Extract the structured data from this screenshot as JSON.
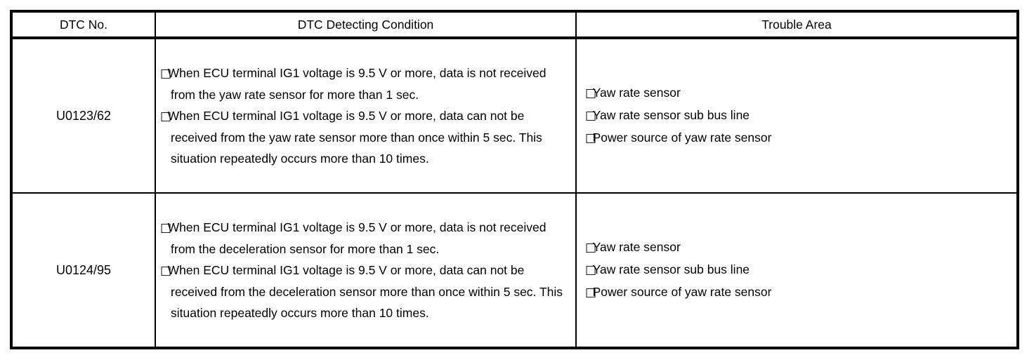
{
  "page": {
    "background_color": "#ffffff",
    "text_color": "#000000",
    "border_color": "#000000"
  },
  "table": {
    "bullet_icon": "□",
    "columns": [
      "DTC No.",
      "DTC Detecting Condition",
      "Trouble Area"
    ],
    "rows": [
      {
        "dtc_no": "U0123/62",
        "conditions": [
          "When ECU terminal IG1 voltage is 9.5 V or more, data is not received from the yaw rate sensor for more than 1 sec.",
          "When ECU terminal IG1 voltage is 9.5 V or more, data can not be received from the yaw rate sensor more than once within 5 sec. This situation repeatedly occurs more than 10 times."
        ],
        "trouble_areas": [
          "Yaw rate sensor",
          "Yaw rate sensor sub bus line",
          "Power source of yaw rate sensor"
        ]
      },
      {
        "dtc_no": "U0124/95",
        "conditions": [
          "When ECU terminal IG1 voltage is 9.5 V or more, data is not received from the deceleration sensor for more than 1 sec.",
          "When ECU terminal IG1 voltage is 9.5 V or more, data can not be received from the deceleration sensor more than once within 5 sec. This situation repeatedly occurs more than 10 times."
        ],
        "trouble_areas": [
          "Yaw rate sensor",
          "Yaw rate sensor sub bus line",
          "Power source of yaw rate sensor"
        ]
      }
    ]
  }
}
